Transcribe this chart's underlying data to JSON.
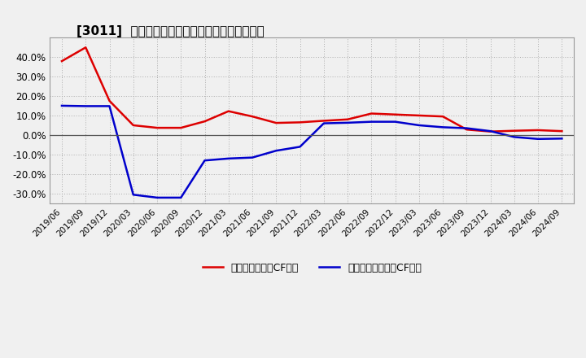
{
  "title": "[3011]  有利子負債キャッシュフロー比率の推移",
  "legend_red": "有利子負債営業CF比率",
  "legend_blue": "有利子負債フリーCF比率",
  "background_color": "#f0f0f0",
  "plot_bg_color": "#f0f0f0",
  "grid_color": "#aaaaaa",
  "ylim": [
    -0.35,
    0.5
  ],
  "yticks": [
    -0.3,
    -0.2,
    -0.1,
    0.0,
    0.1,
    0.2,
    0.3,
    0.4
  ],
  "x_labels": [
    "2019/06",
    "2019/09",
    "2019/12",
    "2020/03",
    "2020/06",
    "2020/09",
    "2020/12",
    "2021/03",
    "2021/06",
    "2021/09",
    "2021/12",
    "2022/03",
    "2022/06",
    "2022/09",
    "2022/12",
    "2023/03",
    "2023/06",
    "2023/09",
    "2023/12",
    "2024/03",
    "2024/06",
    "2024/09"
  ],
  "red_values": [
    0.378,
    0.448,
    0.175,
    0.05,
    0.037,
    0.037,
    0.07,
    0.122,
    0.095,
    0.062,
    0.065,
    0.073,
    0.08,
    0.11,
    0.105,
    0.1,
    0.095,
    0.028,
    0.018,
    0.022,
    0.025,
    0.02
  ],
  "blue_values": [
    0.15,
    0.148,
    0.148,
    -0.305,
    -0.32,
    -0.32,
    -0.13,
    -0.12,
    -0.115,
    -0.08,
    -0.06,
    0.06,
    0.063,
    0.068,
    0.068,
    0.05,
    0.04,
    0.035,
    0.02,
    -0.01,
    -0.02,
    -0.018
  ],
  "red_color": "#dd0000",
  "blue_color": "#0000cc",
  "line_width": 1.8,
  "title_prefix": "[3011]  "
}
